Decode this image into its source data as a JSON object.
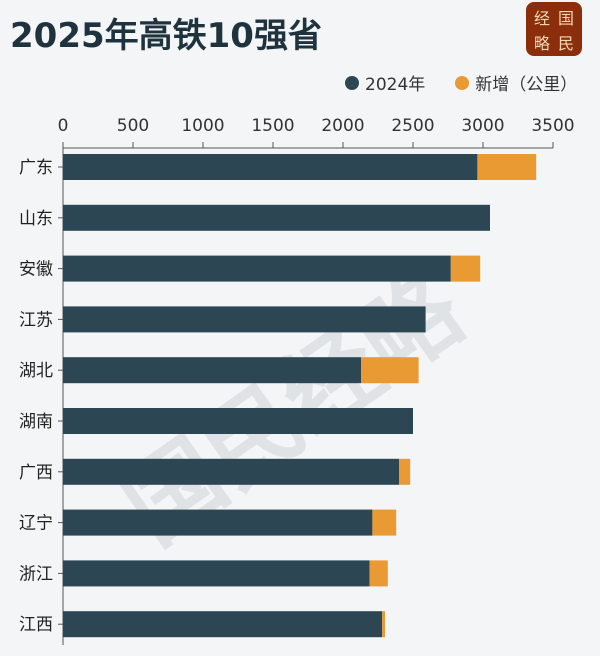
{
  "chart_data": {
    "type": "bar",
    "orientation": "horizontal",
    "stacked": true,
    "title": "2025年高铁10强省",
    "categories": [
      "广东",
      "山东",
      "安徽",
      "江苏",
      "湖北",
      "湖南",
      "广西",
      "辽宁",
      "浙江",
      "江西"
    ],
    "series": [
      {
        "name": "2024年",
        "color": "#2c4653",
        "values": [
          2960,
          3050,
          2770,
          2590,
          2130,
          2500,
          2400,
          2210,
          2190,
          2280
        ]
      },
      {
        "name": "新增（公里）",
        "color": "#e99a33",
        "values": [
          420,
          0,
          210,
          0,
          410,
          0,
          80,
          170,
          130,
          20
        ]
      }
    ],
    "xlim": [
      0,
      3500
    ],
    "xticks": [
      0,
      500,
      1000,
      1500,
      2000,
      2500,
      3000,
      3500
    ],
    "legend_position": "top-right",
    "grid": false
  },
  "logo": {
    "chars": [
      "经",
      "国",
      "略",
      "民"
    ],
    "background": "#8a2e0c"
  },
  "watermark": "国民经略"
}
